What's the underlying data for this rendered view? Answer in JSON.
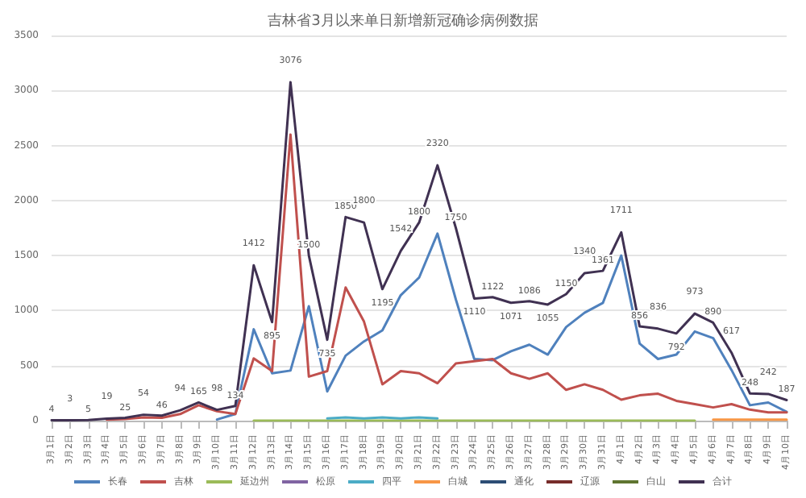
{
  "chart_data": {
    "type": "line",
    "title": "吉林省3月以来单日新增新冠确诊病例数据",
    "categories": [
      "3月1日",
      "3月2日",
      "3月3日",
      "3月4日",
      "3月5日",
      "3月6日",
      "3月7日",
      "3月8日",
      "3月9日",
      "3月10日",
      "3月11日",
      "3月12日",
      "3月13日",
      "3月14日",
      "3月15日",
      "3月16日",
      "3月17日",
      "3月18日",
      "3月19日",
      "3月20日",
      "3月21日",
      "3月22日",
      "3月23日",
      "3月24日",
      "3月25日",
      "3月26日",
      "3月27日",
      "3月28日",
      "3月29日",
      "3月30日",
      "3月31日",
      "4月1日",
      "4月2日",
      "4月3日",
      "4月4日",
      "4月5日",
      "4月6日",
      "4月7日",
      "4月8日",
      "4月9日",
      "4月10日"
    ],
    "series": [
      {
        "name": "长春",
        "color": "#4f81bd",
        "values": [
          null,
          null,
          null,
          null,
          null,
          null,
          null,
          null,
          null,
          10,
          60,
          830,
          430,
          455,
          1040,
          265,
          590,
          720,
          820,
          1140,
          1300,
          1700,
          1100,
          560,
          550,
          630,
          690,
          600,
          850,
          980,
          1070,
          1500,
          700,
          560,
          600,
          810,
          750,
          460,
          140,
          165,
          80
        ]
      },
      {
        "name": "吉林",
        "color": "#c0504d",
        "values": [
          null,
          null,
          null,
          10,
          15,
          30,
          25,
          60,
          140,
          85,
          60,
          565,
          450,
          2600,
          400,
          450,
          1210,
          900,
          330,
          450,
          430,
          340,
          520,
          540,
          560,
          430,
          380,
          430,
          280,
          330,
          280,
          190,
          230,
          245,
          180,
          150,
          120,
          150,
          100,
          75,
          75
        ]
      },
      {
        "name": "延边州",
        "color": "#9bbb59",
        "values": [
          null,
          null,
          null,
          null,
          null,
          null,
          null,
          null,
          null,
          null,
          null,
          0,
          0,
          0,
          0,
          0,
          0,
          0,
          0,
          0,
          0,
          0,
          0,
          0,
          0,
          0,
          0,
          0,
          0,
          0,
          0,
          0,
          0,
          0,
          0,
          0,
          null,
          null,
          null,
          null,
          null
        ]
      },
      {
        "name": "松原",
        "color": "#8064a2",
        "values": [
          null,
          null,
          null,
          null,
          null,
          null,
          null,
          null,
          null,
          null,
          null,
          null,
          null,
          null,
          null,
          null,
          null,
          null,
          null,
          null,
          null,
          null,
          null,
          null,
          null,
          null,
          null,
          null,
          null,
          null,
          null,
          null,
          null,
          null,
          null,
          null,
          null,
          null,
          null,
          null,
          null
        ]
      },
      {
        "name": "四平",
        "color": "#4bacc6",
        "values": [
          null,
          null,
          null,
          null,
          null,
          null,
          null,
          null,
          null,
          null,
          null,
          null,
          null,
          null,
          null,
          20,
          30,
          20,
          30,
          20,
          30,
          20,
          null,
          null,
          null,
          null,
          null,
          null,
          null,
          null,
          null,
          null,
          null,
          null,
          null,
          null,
          null,
          null,
          null,
          null,
          null
        ]
      },
      {
        "name": "白城",
        "color": "#f79646",
        "values": [
          null,
          null,
          null,
          null,
          null,
          null,
          null,
          null,
          null,
          null,
          null,
          null,
          null,
          null,
          null,
          null,
          null,
          null,
          null,
          null,
          null,
          null,
          null,
          null,
          null,
          null,
          null,
          null,
          null,
          null,
          null,
          null,
          null,
          null,
          null,
          null,
          10,
          10,
          10,
          10,
          10
        ]
      },
      {
        "name": "通化",
        "color": "#2c4d75",
        "values": [
          null,
          null,
          null,
          null,
          null,
          null,
          null,
          null,
          null,
          null,
          null,
          null,
          null,
          null,
          null,
          null,
          null,
          null,
          null,
          null,
          null,
          null,
          null,
          null,
          null,
          null,
          null,
          null,
          null,
          null,
          null,
          null,
          null,
          null,
          null,
          null,
          null,
          null,
          null,
          null,
          null
        ]
      },
      {
        "name": "辽源",
        "color": "#772c2a",
        "values": [
          null,
          null,
          null,
          null,
          null,
          null,
          null,
          null,
          null,
          null,
          null,
          null,
          null,
          null,
          null,
          null,
          null,
          null,
          null,
          null,
          null,
          null,
          null,
          null,
          null,
          null,
          null,
          null,
          null,
          null,
          null,
          null,
          null,
          null,
          null,
          null,
          null,
          null,
          null,
          null,
          null
        ]
      },
      {
        "name": "白山",
        "color": "#5f7530",
        "values": [
          null,
          null,
          null,
          null,
          null,
          null,
          null,
          null,
          null,
          null,
          null,
          null,
          null,
          null,
          null,
          null,
          null,
          null,
          null,
          null,
          null,
          null,
          null,
          null,
          null,
          null,
          null,
          null,
          null,
          null,
          null,
          null,
          null,
          null,
          null,
          null,
          null,
          null,
          null,
          null,
          null
        ]
      },
      {
        "name": "合计",
        "color": "#403152",
        "values": [
          4,
          3,
          5,
          19,
          25,
          54,
          46,
          94,
          165,
          98,
          134,
          1412,
          895,
          3076,
          1500,
          735,
          1850,
          1800,
          1195,
          1542,
          1800,
          2320,
          1750,
          1110,
          1122,
          1071,
          1086,
          1055,
          1150,
          1340,
          1361,
          1711,
          856,
          836,
          792,
          973,
          890,
          617,
          248,
          242,
          187
        ],
        "value_labels": [
          "4",
          "3",
          "5",
          "19",
          "25",
          "54",
          "46",
          "94",
          "165",
          "98",
          "134",
          "1412",
          "895",
          "3076",
          "1500",
          "735",
          "1850",
          "1800",
          "1195",
          "1542",
          "1800",
          "2320",
          "1750",
          "1110",
          "1122",
          "1071",
          "1086",
          "1055",
          "1150",
          "1340",
          "1361",
          "1711",
          "856",
          "836",
          "792",
          "973",
          "890",
          "617",
          "248",
          "242",
          "187"
        ]
      }
    ],
    "ylim": [
      0,
      3500
    ],
    "yticks": [
      0,
      500,
      1000,
      1500,
      2000,
      2500,
      3000,
      3500
    ],
    "grid": "y",
    "legend": "bottom",
    "marker": "none",
    "line_style": "solid"
  }
}
